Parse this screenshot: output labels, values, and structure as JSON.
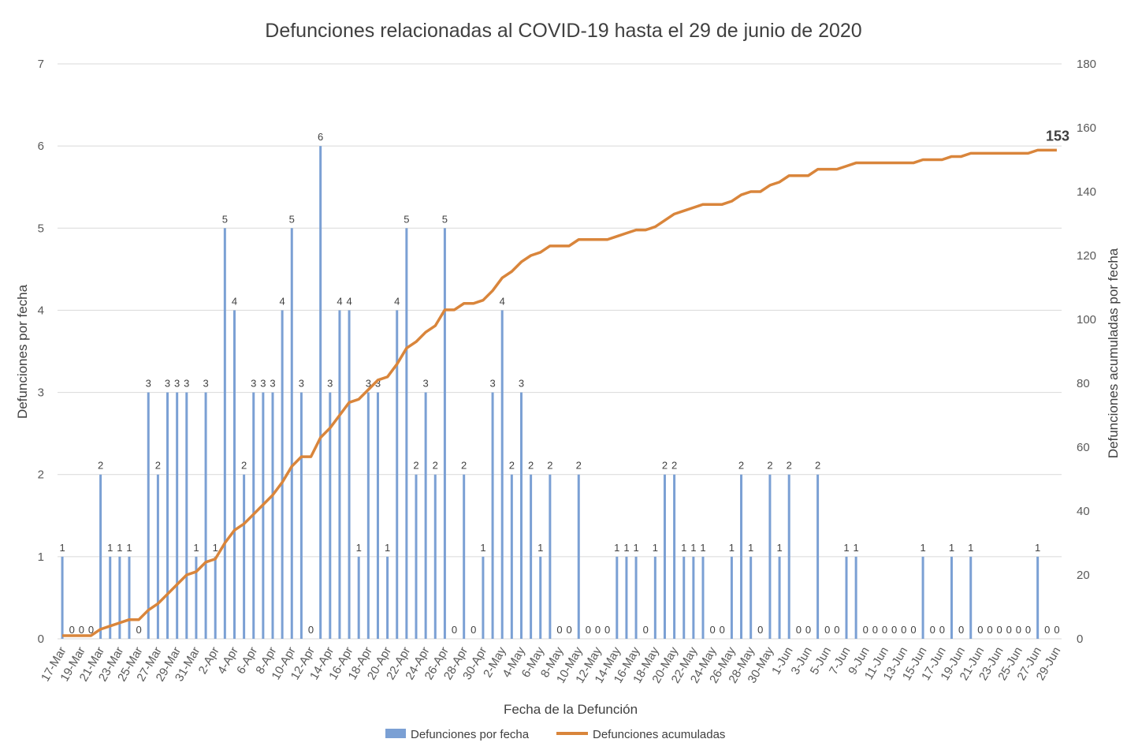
{
  "chart_data": {
    "type": "bar",
    "title": "Defunciones relacionadas al COVID-19 hasta el 29 de junio de 2020",
    "xlabel": "Fecha de la Defunción",
    "ylabel": "Defunciones por fecha",
    "y2label": "Defunciones acumuladas por fecha",
    "ylim": [
      0,
      7
    ],
    "y2lim": [
      0,
      180
    ],
    "yticks": [
      "0",
      "1",
      "2",
      "3",
      "4",
      "5",
      "6",
      "7"
    ],
    "y2ticks": [
      "0",
      "20",
      "40",
      "60",
      "80",
      "100",
      "120",
      "140",
      "160",
      "180"
    ],
    "grid": true,
    "legend_position": "bottom",
    "final_label": "153",
    "categories": [
      "17-Mar",
      "18-Mar",
      "19-Mar",
      "20-Mar",
      "21-Mar",
      "22-Mar",
      "23-Mar",
      "24-Mar",
      "25-Mar",
      "26-Mar",
      "27-Mar",
      "28-Mar",
      "29-Mar",
      "30-Mar",
      "31-Mar",
      "1-Apr",
      "2-Apr",
      "3-Apr",
      "4-Apr",
      "5-Apr",
      "6-Apr",
      "7-Apr",
      "8-Apr",
      "9-Apr",
      "10-Apr",
      "11-Apr",
      "12-Apr",
      "13-Apr",
      "14-Apr",
      "15-Apr",
      "16-Apr",
      "17-Apr",
      "18-Apr",
      "19-Apr",
      "20-Apr",
      "21-Apr",
      "22-Apr",
      "23-Apr",
      "24-Apr",
      "25-Apr",
      "26-Apr",
      "27-Apr",
      "28-Apr",
      "29-Apr",
      "30-Apr",
      "1-May",
      "2-May",
      "3-May",
      "4-May",
      "5-May",
      "6-May",
      "7-May",
      "8-May",
      "9-May",
      "10-May",
      "11-May",
      "12-May",
      "13-May",
      "14-May",
      "15-May",
      "16-May",
      "17-May",
      "18-May",
      "19-May",
      "20-May",
      "21-May",
      "22-May",
      "23-May",
      "24-May",
      "25-May",
      "26-May",
      "27-May",
      "28-May",
      "29-May",
      "30-May",
      "31-May",
      "1-Jun",
      "2-Jun",
      "3-Jun",
      "4-Jun",
      "5-Jun",
      "6-Jun",
      "7-Jun",
      "8-Jun",
      "9-Jun",
      "10-Jun",
      "11-Jun",
      "12-Jun",
      "13-Jun",
      "14-Jun",
      "15-Jun",
      "16-Jun",
      "17-Jun",
      "18-Jun",
      "19-Jun",
      "20-Jun",
      "21-Jun",
      "22-Jun",
      "23-Jun",
      "24-Jun",
      "25-Jun",
      "26-Jun",
      "27-Jun",
      "28-Jun",
      "29-Jun"
    ],
    "tick_labels": [
      "17-Mar",
      "19-Mar",
      "21-Mar",
      "23-Mar",
      "25-Mar",
      "27-Mar",
      "29-Mar",
      "31-Mar",
      "2-Apr",
      "4-Apr",
      "6-Apr",
      "8-Apr",
      "10-Apr",
      "12-Apr",
      "14-Apr",
      "16-Apr",
      "18-Apr",
      "20-Apr",
      "22-Apr",
      "24-Apr",
      "26-Apr",
      "28-Apr",
      "30-Apr",
      "2-May",
      "4-May",
      "6-May",
      "8-May",
      "10-May",
      "12-May",
      "14-May",
      "16-May",
      "18-May",
      "20-May",
      "22-May",
      "24-May",
      "26-May",
      "28-May",
      "30-May",
      "1-Jun",
      "3-Jun",
      "5-Jun",
      "7-Jun",
      "9-Jun",
      "11-Jun",
      "13-Jun",
      "15-Jun",
      "17-Jun",
      "19-Jun",
      "21-Jun",
      "23-Jun",
      "25-Jun",
      "27-Jun",
      "29-Jun"
    ],
    "series": [
      {
        "name": "Defunciones por fecha",
        "type": "bar",
        "axis": "left",
        "color": "#7ba0d4",
        "values": [
          1,
          0,
          0,
          0,
          2,
          1,
          1,
          1,
          0,
          3,
          2,
          3,
          3,
          3,
          1,
          3,
          1,
          5,
          4,
          2,
          3,
          3,
          3,
          4,
          5,
          3,
          0,
          6,
          3,
          4,
          4,
          1,
          3,
          3,
          1,
          4,
          5,
          2,
          3,
          2,
          5,
          0,
          2,
          0,
          1,
          3,
          4,
          2,
          3,
          2,
          1,
          2,
          0,
          0,
          2,
          0,
          0,
          0,
          1,
          1,
          1,
          0,
          1,
          2,
          2,
          1,
          1,
          1,
          0,
          0,
          1,
          2,
          1,
          0,
          2,
          1,
          2,
          0,
          0,
          2,
          0,
          0,
          1,
          1,
          0,
          0,
          0,
          0,
          0,
          0,
          1,
          0,
          0,
          1,
          0,
          1,
          0,
          0,
          0,
          0,
          0,
          0,
          1,
          0,
          0
        ]
      },
      {
        "name": "Defunciones acumuladas",
        "type": "line",
        "axis": "right",
        "color": "#d9853b",
        "values": [
          1,
          1,
          1,
          1,
          3,
          4,
          5,
          6,
          6,
          9,
          11,
          14,
          17,
          20,
          21,
          24,
          25,
          30,
          34,
          36,
          39,
          42,
          45,
          49,
          54,
          57,
          57,
          63,
          66,
          70,
          74,
          75,
          78,
          81,
          82,
          86,
          91,
          93,
          96,
          98,
          103,
          103,
          105,
          105,
          106,
          109,
          113,
          115,
          118,
          120,
          121,
          123,
          123,
          123,
          125,
          125,
          125,
          125,
          126,
          127,
          128,
          128,
          129,
          131,
          133,
          134,
          135,
          136,
          136,
          136,
          137,
          139,
          140,
          140,
          142,
          143,
          145,
          145,
          145,
          147,
          147,
          147,
          148,
          149,
          149,
          149,
          149,
          149,
          149,
          149,
          150,
          150,
          150,
          151,
          151,
          152,
          152,
          152,
          152,
          152,
          152,
          152,
          153,
          153,
          153
        ]
      }
    ]
  }
}
